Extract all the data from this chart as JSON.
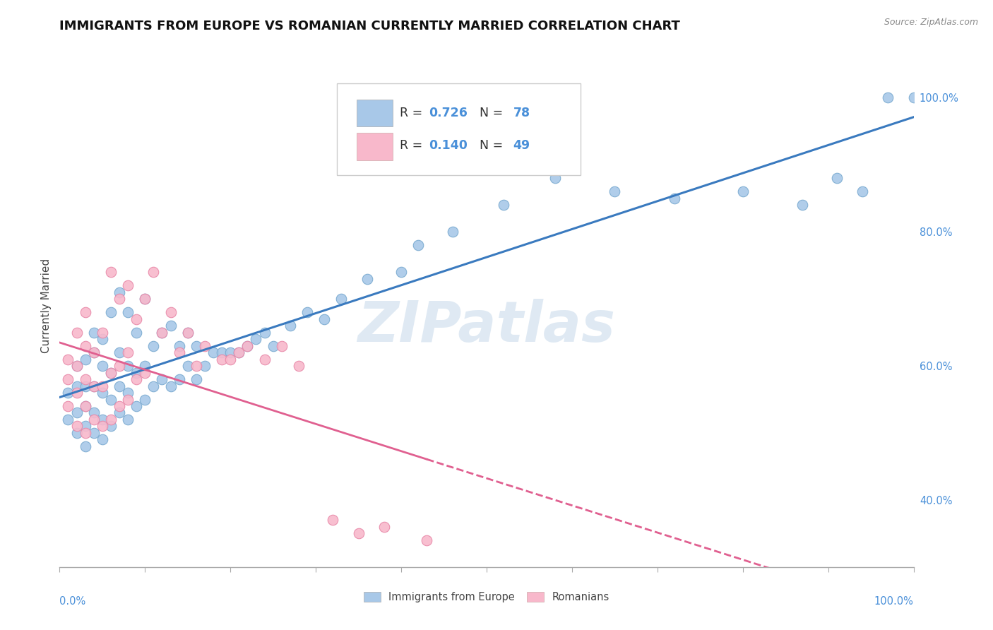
{
  "title": "IMMIGRANTS FROM EUROPE VS ROMANIAN CURRENTLY MARRIED CORRELATION CHART",
  "source": "Source: ZipAtlas.com",
  "ylabel": "Currently Married",
  "blue_label": "Immigrants from Europe",
  "pink_label": "Romanians",
  "blue_R": 0.726,
  "blue_N": 78,
  "pink_R": 0.14,
  "pink_N": 49,
  "blue_color": "#a8c8e8",
  "blue_edge_color": "#7aaad0",
  "blue_line_color": "#3a7abf",
  "pink_color": "#f8b8cb",
  "pink_edge_color": "#e888a8",
  "pink_line_color": "#e06090",
  "watermark": "ZIPatlas",
  "blue_scatter_x": [
    0.01,
    0.01,
    0.02,
    0.02,
    0.02,
    0.02,
    0.03,
    0.03,
    0.03,
    0.03,
    0.03,
    0.04,
    0.04,
    0.04,
    0.04,
    0.04,
    0.05,
    0.05,
    0.05,
    0.05,
    0.05,
    0.06,
    0.06,
    0.06,
    0.06,
    0.07,
    0.07,
    0.07,
    0.07,
    0.08,
    0.08,
    0.08,
    0.08,
    0.09,
    0.09,
    0.09,
    0.1,
    0.1,
    0.1,
    0.11,
    0.11,
    0.12,
    0.12,
    0.13,
    0.13,
    0.14,
    0.14,
    0.15,
    0.15,
    0.16,
    0.16,
    0.17,
    0.18,
    0.19,
    0.2,
    0.21,
    0.22,
    0.23,
    0.24,
    0.25,
    0.27,
    0.29,
    0.31,
    0.33,
    0.36,
    0.4,
    0.42,
    0.46,
    0.52,
    0.58,
    0.65,
    0.72,
    0.8,
    0.87,
    0.91,
    0.94,
    0.97,
    1.0
  ],
  "blue_scatter_y": [
    0.52,
    0.56,
    0.5,
    0.53,
    0.57,
    0.6,
    0.48,
    0.51,
    0.54,
    0.57,
    0.61,
    0.5,
    0.53,
    0.57,
    0.62,
    0.65,
    0.49,
    0.52,
    0.56,
    0.6,
    0.64,
    0.51,
    0.55,
    0.59,
    0.68,
    0.53,
    0.57,
    0.62,
    0.71,
    0.52,
    0.56,
    0.6,
    0.68,
    0.54,
    0.59,
    0.65,
    0.55,
    0.6,
    0.7,
    0.57,
    0.63,
    0.58,
    0.65,
    0.57,
    0.66,
    0.58,
    0.63,
    0.6,
    0.65,
    0.58,
    0.63,
    0.6,
    0.62,
    0.62,
    0.62,
    0.62,
    0.63,
    0.64,
    0.65,
    0.63,
    0.66,
    0.68,
    0.67,
    0.7,
    0.73,
    0.74,
    0.78,
    0.8,
    0.84,
    0.88,
    0.86,
    0.85,
    0.86,
    0.84,
    0.88,
    0.86,
    1.0,
    1.0
  ],
  "pink_scatter_x": [
    0.01,
    0.01,
    0.01,
    0.02,
    0.02,
    0.02,
    0.02,
    0.03,
    0.03,
    0.03,
    0.03,
    0.03,
    0.04,
    0.04,
    0.04,
    0.05,
    0.05,
    0.05,
    0.06,
    0.06,
    0.06,
    0.07,
    0.07,
    0.07,
    0.08,
    0.08,
    0.08,
    0.09,
    0.09,
    0.1,
    0.1,
    0.11,
    0.12,
    0.13,
    0.14,
    0.15,
    0.16,
    0.17,
    0.19,
    0.2,
    0.21,
    0.22,
    0.24,
    0.26,
    0.28,
    0.32,
    0.35,
    0.38,
    0.43
  ],
  "pink_scatter_y": [
    0.54,
    0.58,
    0.61,
    0.51,
    0.56,
    0.6,
    0.65,
    0.5,
    0.54,
    0.58,
    0.63,
    0.68,
    0.52,
    0.57,
    0.62,
    0.51,
    0.57,
    0.65,
    0.52,
    0.59,
    0.74,
    0.54,
    0.6,
    0.7,
    0.55,
    0.62,
    0.72,
    0.58,
    0.67,
    0.59,
    0.7,
    0.74,
    0.65,
    0.68,
    0.62,
    0.65,
    0.6,
    0.63,
    0.61,
    0.61,
    0.62,
    0.63,
    0.61,
    0.63,
    0.6,
    0.37,
    0.35,
    0.36,
    0.34
  ],
  "xlim": [
    0.0,
    1.0
  ],
  "ylim": [
    0.3,
    1.08
  ],
  "bg_color": "#ffffff",
  "grid_color": "#dddddd",
  "tick_color": "#4a90d9",
  "title_fontsize": 13,
  "axis_label_fontsize": 11
}
